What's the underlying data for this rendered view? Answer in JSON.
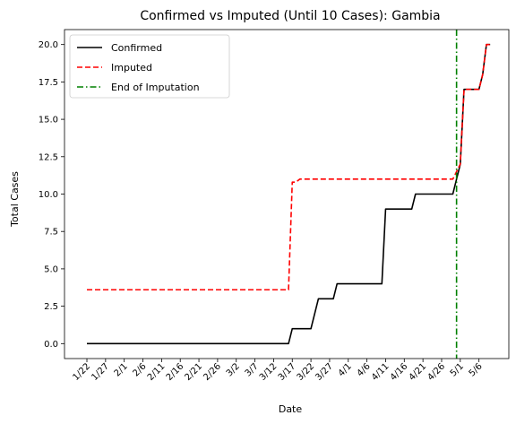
{
  "chart_data": {
    "type": "line",
    "title": "Confirmed vs Imputed (Until 10 Cases): Gambia",
    "xlabel": "Date",
    "ylabel": "Total Cases",
    "start_label": "1/22",
    "x_tick_labels": [
      "1/22",
      "1/27",
      "2/1",
      "2/6",
      "2/11",
      "2/16",
      "2/21",
      "2/26",
      "3/2",
      "3/7",
      "3/12",
      "3/17",
      "3/22",
      "3/27",
      "4/1",
      "4/6",
      "4/11",
      "4/16",
      "4/21",
      "4/26",
      "5/1",
      "5/6"
    ],
    "x_tick_step_days": 5,
    "xlim_days": [
      -6,
      113
    ],
    "ylim": [
      -1.0,
      21.0
    ],
    "y_ticks": [
      0.0,
      2.5,
      5.0,
      7.5,
      10.0,
      12.5,
      15.0,
      17.5,
      20.0
    ],
    "y_tick_labels": [
      "0.0",
      "2.5",
      "5.0",
      "7.5",
      "10.0",
      "12.5",
      "15.0",
      "17.5",
      "20.0"
    ],
    "grid": false,
    "legend_position": "top-left",
    "series": [
      {
        "name": "Confirmed",
        "color": "#000000",
        "style": "solid",
        "points": [
          [
            0,
            0
          ],
          [
            54,
            0
          ],
          [
            55,
            1
          ],
          [
            60,
            1
          ],
          [
            62,
            3
          ],
          [
            66,
            3
          ],
          [
            67,
            4
          ],
          [
            79,
            4
          ],
          [
            80,
            9
          ],
          [
            87,
            9
          ],
          [
            88,
            10
          ],
          [
            98,
            10
          ],
          [
            100,
            12
          ],
          [
            101,
            17
          ],
          [
            105,
            17
          ],
          [
            106,
            18
          ],
          [
            107,
            20
          ],
          [
            108,
            20
          ]
        ]
      },
      {
        "name": "Imputed",
        "color": "#ff0000",
        "style": "dashed",
        "points": [
          [
            0,
            3.6
          ],
          [
            54,
            3.6
          ],
          [
            55,
            10.8
          ],
          [
            56,
            10.8
          ],
          [
            57,
            11
          ],
          [
            98,
            11
          ],
          [
            100,
            12
          ],
          [
            101,
            17
          ],
          [
            105,
            17
          ],
          [
            106,
            18
          ],
          [
            107,
            20
          ],
          [
            108,
            20
          ]
        ]
      }
    ],
    "vline": {
      "name": "End of Imputation",
      "x_day": 99,
      "color": "#008000",
      "style": "dashdot"
    }
  }
}
